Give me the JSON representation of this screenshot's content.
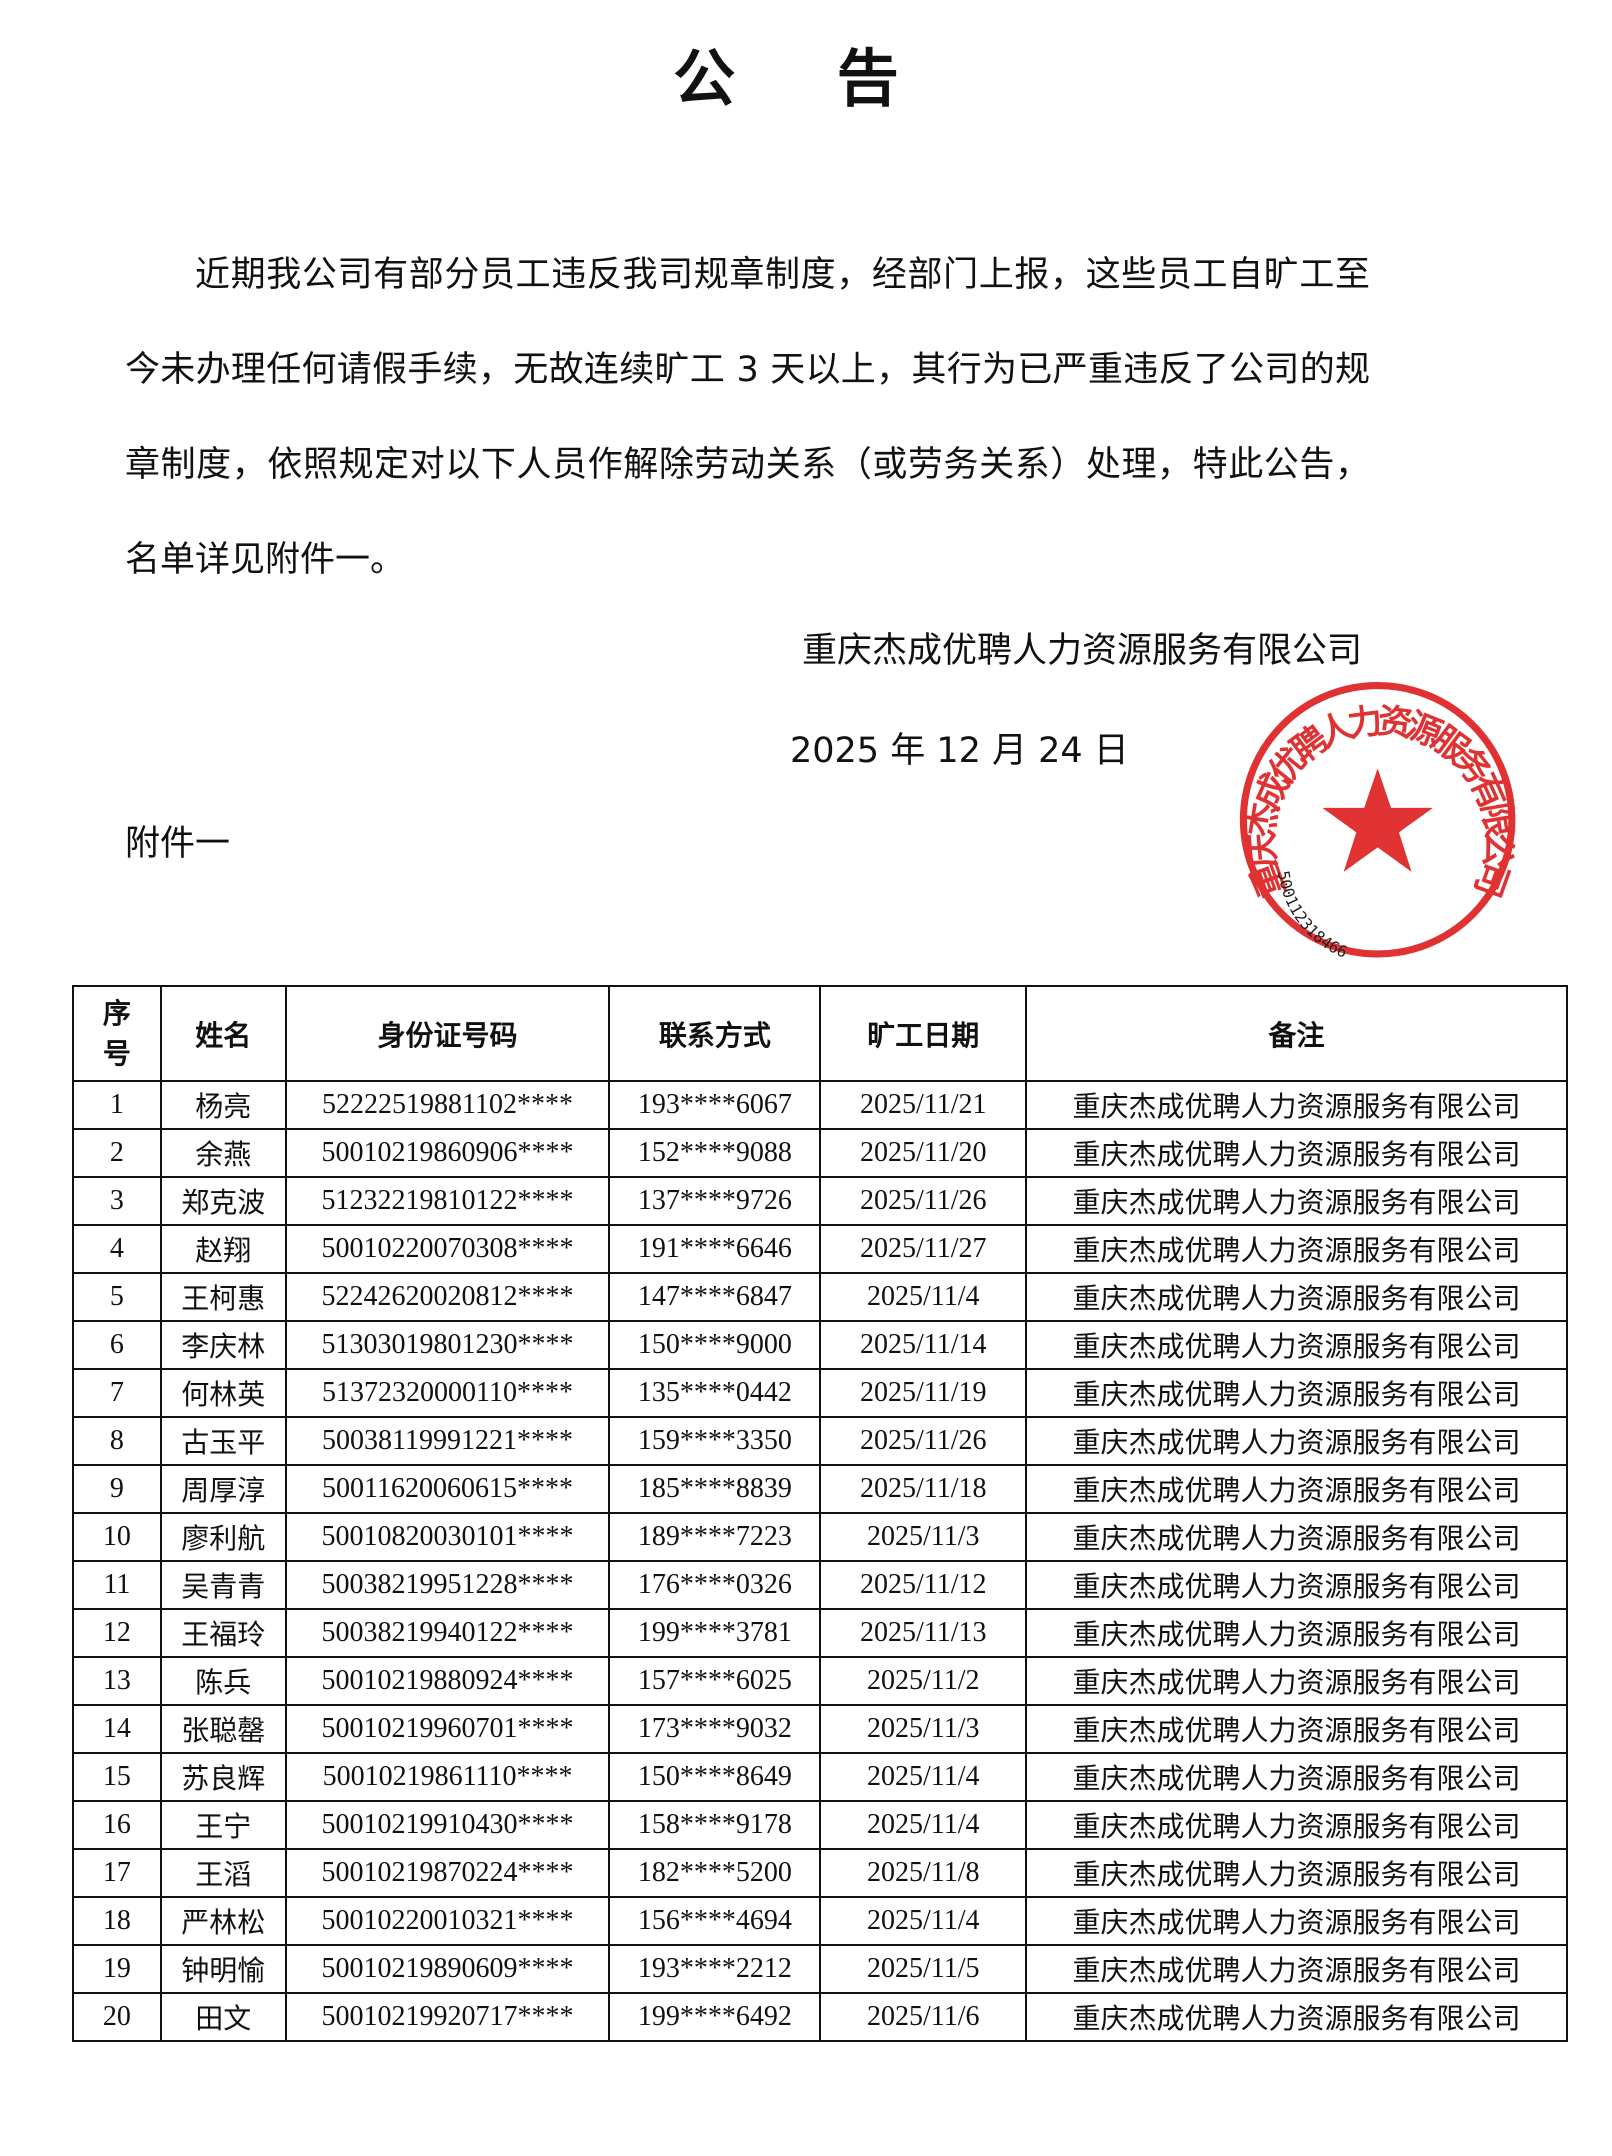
{
  "title": "公 告",
  "body": [
    "近期我公司有部分员工违反我司规章制度，经部门上报，这些员工自旷工至今未办理任何请假手续，无故连续旷工 3 天以上，其行为已严重违反了公司的规章制度，依照规定对以下人员作解除劳动关系（或劳务关系）处理，特此公告，名单详见附件一。"
  ],
  "signature": {
    "company": "重庆杰成优聘人力资源服务有限公司",
    "date": "2025 年 12 月 24 日"
  },
  "stamp": {
    "text": "重庆杰成优聘人力资源服务有限公司",
    "number": "500112318466",
    "color": "#e03232",
    "icon": "star-icon"
  },
  "annex_label": "附件一",
  "table": {
    "headers": [
      "序\n号",
      "姓名",
      "身份证号码",
      "联系方式",
      "旷工日期",
      "备注"
    ],
    "rows": [
      [
        "1",
        "杨亮",
        "52222519881102****",
        "193****6067",
        "2025/11/21",
        "重庆杰成优聘人力资源服务有限公司"
      ],
      [
        "2",
        "余燕",
        "50010219860906****",
        "152****9088",
        "2025/11/20",
        "重庆杰成优聘人力资源服务有限公司"
      ],
      [
        "3",
        "郑克波",
        "51232219810122****",
        "137****9726",
        "2025/11/26",
        "重庆杰成优聘人力资源服务有限公司"
      ],
      [
        "4",
        "赵翔",
        "50010220070308****",
        "191****6646",
        "2025/11/27",
        "重庆杰成优聘人力资源服务有限公司"
      ],
      [
        "5",
        "王柯惠",
        "52242620020812****",
        "147****6847",
        "2025/11/4",
        "重庆杰成优聘人力资源服务有限公司"
      ],
      [
        "6",
        "李庆林",
        "51303019801230****",
        "150****9000",
        "2025/11/14",
        "重庆杰成优聘人力资源服务有限公司"
      ],
      [
        "7",
        "何林英",
        "51372320000110****",
        "135****0442",
        "2025/11/19",
        "重庆杰成优聘人力资源服务有限公司"
      ],
      [
        "8",
        "古玉平",
        "50038119991221****",
        "159****3350",
        "2025/11/26",
        "重庆杰成优聘人力资源服务有限公司"
      ],
      [
        "9",
        "周厚淳",
        "50011620060615****",
        "185****8839",
        "2025/11/18",
        "重庆杰成优聘人力资源服务有限公司"
      ],
      [
        "10",
        "廖利航",
        "50010820030101****",
        "189****7223",
        "2025/11/3",
        "重庆杰成优聘人力资源服务有限公司"
      ],
      [
        "11",
        "吴青青",
        "50038219951228****",
        "176****0326",
        "2025/11/12",
        "重庆杰成优聘人力资源服务有限公司"
      ],
      [
        "12",
        "王福玲",
        "50038219940122****",
        "199****3781",
        "2025/11/13",
        "重庆杰成优聘人力资源服务有限公司"
      ],
      [
        "13",
        "陈兵",
        "50010219880924****",
        "157****6025",
        "2025/11/2",
        "重庆杰成优聘人力资源服务有限公司"
      ],
      [
        "14",
        "张聪罄",
        "50010219960701****",
        "173****9032",
        "2025/11/3",
        "重庆杰成优聘人力资源服务有限公司"
      ],
      [
        "15",
        "苏良辉",
        "50010219861110****",
        "150****8649",
        "2025/11/4",
        "重庆杰成优聘人力资源服务有限公司"
      ],
      [
        "16",
        "王宁",
        "50010219910430****",
        "158****9178",
        "2025/11/4",
        "重庆杰成优聘人力资源服务有限公司"
      ],
      [
        "17",
        "王滔",
        "50010219870224****",
        "182****5200",
        "2025/11/8",
        "重庆杰成优聘人力资源服务有限公司"
      ],
      [
        "18",
        "严林松",
        "50010220010321****",
        "156****4694",
        "2025/11/4",
        "重庆杰成优聘人力资源服务有限公司"
      ],
      [
        "19",
        "钟明愉",
        "50010219890609****",
        "193****2212",
        "2025/11/5",
        "重庆杰成优聘人力资源服务有限公司"
      ],
      [
        "20",
        "田文",
        "50010219920717****",
        "199****6492",
        "2025/11/6",
        "重庆杰成优聘人力资源服务有限公司"
      ]
    ]
  }
}
